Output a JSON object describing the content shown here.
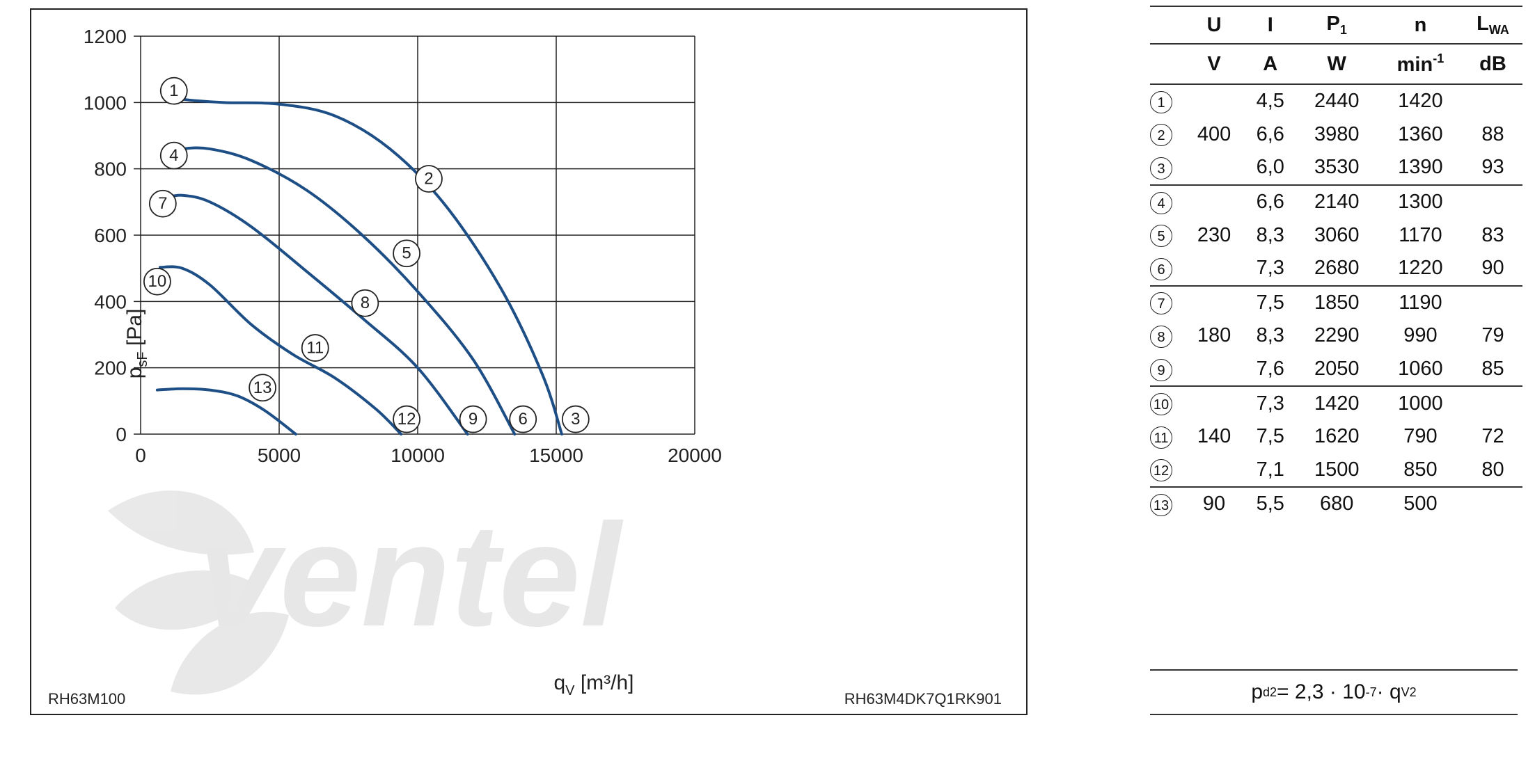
{
  "chart_data": {
    "type": "line",
    "xlabel_main": "q",
    "xlabel_sub": "V",
    "xlabel_unit": " [m³/h]",
    "ylabel_main": "p",
    "ylabel_sub": "sF",
    "ylabel_unit": " [Pa]",
    "xlim": [
      0,
      20000
    ],
    "ylim": [
      0,
      1200
    ],
    "x_ticks": [
      0,
      5000,
      10000,
      15000,
      20000
    ],
    "y_ticks": [
      0,
      200,
      400,
      600,
      800,
      1000,
      1200
    ],
    "grid": true,
    "curve_color": "#1d4f86",
    "left_corner_label": "RH63M100",
    "right_corner_label": "RH63M4DK7Q1RK901",
    "watermark_text": "ventel",
    "series": [
      {
        "name": "2",
        "points": [
          [
            800,
            1025
          ],
          [
            1500,
            1010
          ],
          [
            3000,
            1000
          ],
          [
            5000,
            995
          ],
          [
            7000,
            960
          ],
          [
            9000,
            860
          ],
          [
            11000,
            690
          ],
          [
            13000,
            440
          ],
          [
            14500,
            180
          ],
          [
            15200,
            0
          ]
        ]
      },
      {
        "name": "6",
        "points": [
          [
            800,
            845
          ],
          [
            1500,
            860
          ],
          [
            2500,
            860
          ],
          [
            4000,
            825
          ],
          [
            6000,
            735
          ],
          [
            8000,
            600
          ],
          [
            10000,
            430
          ],
          [
            12000,
            225
          ],
          [
            13500,
            0
          ]
        ]
      },
      {
        "name": "9",
        "points": [
          [
            800,
            712
          ],
          [
            1500,
            720
          ],
          [
            2500,
            700
          ],
          [
            4000,
            625
          ],
          [
            6000,
            490
          ],
          [
            8000,
            350
          ],
          [
            10000,
            200
          ],
          [
            11800,
            0
          ]
        ]
      },
      {
        "name": "12",
        "points": [
          [
            700,
            503
          ],
          [
            1500,
            500
          ],
          [
            2500,
            450
          ],
          [
            4000,
            330
          ],
          [
            5500,
            240
          ],
          [
            7000,
            170
          ],
          [
            8500,
            75
          ],
          [
            9400,
            0
          ]
        ]
      },
      {
        "name": "13",
        "points": [
          [
            600,
            133
          ],
          [
            1500,
            137
          ],
          [
            2500,
            133
          ],
          [
            3500,
            115
          ],
          [
            4500,
            70
          ],
          [
            5600,
            0
          ]
        ]
      }
    ],
    "markers": [
      {
        "label": "1",
        "x": 1200,
        "y": 1035
      },
      {
        "label": "2",
        "x": 10400,
        "y": 770
      },
      {
        "label": "3",
        "x": 15700,
        "y": 45
      },
      {
        "label": "4",
        "x": 1200,
        "y": 840
      },
      {
        "label": "5",
        "x": 9600,
        "y": 545
      },
      {
        "label": "6",
        "x": 13800,
        "y": 45
      },
      {
        "label": "7",
        "x": 800,
        "y": 695
      },
      {
        "label": "8",
        "x": 8100,
        "y": 395
      },
      {
        "label": "9",
        "x": 12000,
        "y": 45
      },
      {
        "label": "10",
        "x": 600,
        "y": 460
      },
      {
        "label": "11",
        "x": 6300,
        "y": 260
      },
      {
        "label": "12",
        "x": 9600,
        "y": 45
      },
      {
        "label": "13",
        "x": 4400,
        "y": 140
      }
    ]
  },
  "table": {
    "headers": [
      {
        "main": "U",
        "sub": ""
      },
      {
        "main": "I",
        "sub": ""
      },
      {
        "main": "P",
        "sub": "1"
      },
      {
        "main": "n",
        "sub": ""
      },
      {
        "main": "L",
        "sub": "WA"
      }
    ],
    "units": [
      {
        "main": "V",
        "sup": ""
      },
      {
        "main": "A",
        "sup": ""
      },
      {
        "main": "W",
        "sup": ""
      },
      {
        "main": "min",
        "sup": "-1"
      },
      {
        "main": "dB",
        "sup": ""
      }
    ],
    "rows": [
      {
        "idx": "1",
        "U": "",
        "I": "4,5",
        "P": "2440",
        "n": "1420",
        "L": ""
      },
      {
        "idx": "2",
        "U": "400",
        "I": "6,6",
        "P": "3980",
        "n": "1360",
        "L": "88"
      },
      {
        "idx": "3",
        "U": "",
        "I": "6,0",
        "P": "3530",
        "n": "1390",
        "L": "93"
      },
      {
        "idx": "4",
        "U": "",
        "I": "6,6",
        "P": "2140",
        "n": "1300",
        "L": ""
      },
      {
        "idx": "5",
        "U": "230",
        "I": "8,3",
        "P": "3060",
        "n": "1170",
        "L": "83"
      },
      {
        "idx": "6",
        "U": "",
        "I": "7,3",
        "P": "2680",
        "n": "1220",
        "L": "90"
      },
      {
        "idx": "7",
        "U": "",
        "I": "7,5",
        "P": "1850",
        "n": "1190",
        "L": ""
      },
      {
        "idx": "8",
        "U": "180",
        "I": "8,3",
        "P": "2290",
        "n": "990",
        "L": "79"
      },
      {
        "idx": "9",
        "U": "",
        "I": "7,6",
        "P": "2050",
        "n": "1060",
        "L": "85"
      },
      {
        "idx": "10",
        "U": "",
        "I": "7,3",
        "P": "1420",
        "n": "1000",
        "L": ""
      },
      {
        "idx": "11",
        "U": "140",
        "I": "7,5",
        "P": "1620",
        "n": "790",
        "L": "72"
      },
      {
        "idx": "12",
        "U": "",
        "I": "7,1",
        "P": "1500",
        "n": "850",
        "L": "80"
      },
      {
        "idx": "13",
        "U": "90",
        "I": "5,5",
        "P": "680",
        "n": "500",
        "L": ""
      }
    ],
    "group_ends": [
      2,
      5,
      8,
      11
    ]
  },
  "formula": {
    "p": "p",
    "p_sub": "d2",
    "eq": " = 2,3 · 10",
    "exp": "-7",
    "mult": " · q",
    "q_sub": "V",
    "q_sup": "2"
  }
}
